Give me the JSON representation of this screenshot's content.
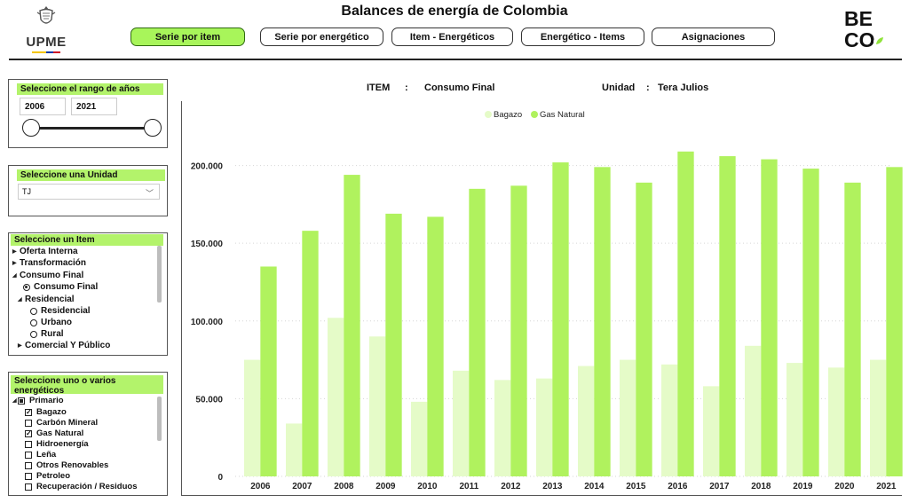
{
  "header": {
    "title": "Balances de energía de Colombia",
    "left_logo_text": "UPME",
    "right_logo_text": [
      "BE",
      "CO"
    ]
  },
  "tabs": [
    {
      "label": "Serie por item",
      "active": true
    },
    {
      "label": "Serie por energético",
      "active": false
    },
    {
      "label": "Item - Energéticos",
      "active": false
    },
    {
      "label": "Energético - Items",
      "active": false
    },
    {
      "label": "Asignaciones",
      "active": false
    }
  ],
  "year_range": {
    "heading": "Seleccione el rango de años",
    "from": "2006",
    "to": "2021"
  },
  "unit_panel": {
    "heading": "Seleccione una Unidad",
    "selected": "TJ"
  },
  "item_panel": {
    "heading": "Seleccione un Item",
    "rows": [
      {
        "label": "Oferta Interna",
        "kind": "collapsed",
        "level": 0
      },
      {
        "label": "Transformación",
        "kind": "collapsed",
        "level": 0
      },
      {
        "label": "Consumo Final",
        "kind": "expanded",
        "level": 0
      },
      {
        "label": "Consumo Final",
        "kind": "radio-on",
        "level": 1
      },
      {
        "label": "Residencial",
        "kind": "expanded",
        "level": 1
      },
      {
        "label": "Residencial",
        "kind": "radio",
        "level": 2
      },
      {
        "label": "Urbano",
        "kind": "radio",
        "level": 2
      },
      {
        "label": "Rural",
        "kind": "radio",
        "level": 2
      },
      {
        "label": "Comercial Y Público",
        "kind": "collapsed",
        "level": 1
      }
    ]
  },
  "energetics_panel": {
    "heading_line1": "Seleccione uno o varios",
    "heading_line2": "energéticos",
    "rows": [
      {
        "label": "Primario",
        "kind": "group-partial"
      },
      {
        "label": "Bagazo",
        "kind": "checked"
      },
      {
        "label": "Carbón Mineral",
        "kind": "unchecked"
      },
      {
        "label": "Gas Natural",
        "kind": "checked"
      },
      {
        "label": "Hidroenergía",
        "kind": "unchecked"
      },
      {
        "label": "Leña",
        "kind": "unchecked"
      },
      {
        "label": "Otros Renovables",
        "kind": "unchecked"
      },
      {
        "label": "Petroleo",
        "kind": "unchecked"
      },
      {
        "label": "Recuperación / Residuos",
        "kind": "unchecked"
      }
    ]
  },
  "info": {
    "item_label": "ITEM",
    "item_sep": ":",
    "item_value": "Consumo Final",
    "unit_label": "Unidad",
    "unit_sep": ":",
    "unit_value": "Tera Julios"
  },
  "colors": {
    "accent": "#a8f55a",
    "bagazo": "#e5fbc8",
    "gas_natural": "#b0f25e",
    "panel_head": "#b3f36b"
  },
  "chart_data": {
    "type": "bar",
    "categories": [
      "2006",
      "2007",
      "2008",
      "2009",
      "2010",
      "2011",
      "2012",
      "2013",
      "2014",
      "2015",
      "2016",
      "2017",
      "2018",
      "2019",
      "2020",
      "2021"
    ],
    "series": [
      {
        "name": "Bagazo",
        "values": [
          75000,
          34000,
          102000,
          90000,
          48000,
          68000,
          62000,
          63000,
          71000,
          75000,
          72000,
          58000,
          84000,
          73000,
          70000,
          75000
        ]
      },
      {
        "name": "Gas Natural",
        "values": [
          135000,
          158000,
          194000,
          169000,
          167000,
          185000,
          187000,
          202000,
          199000,
          189000,
          209000,
          206000,
          204000,
          198000,
          189000,
          199000
        ]
      }
    ],
    "y_ticks": [
      "0",
      "50.000",
      "100.000",
      "150.000",
      "200.000"
    ],
    "y_tick_values": [
      0,
      50000,
      100000,
      150000,
      200000
    ],
    "ylim": [
      0,
      230000
    ],
    "legend_position": "top-center",
    "gridlines": true
  }
}
